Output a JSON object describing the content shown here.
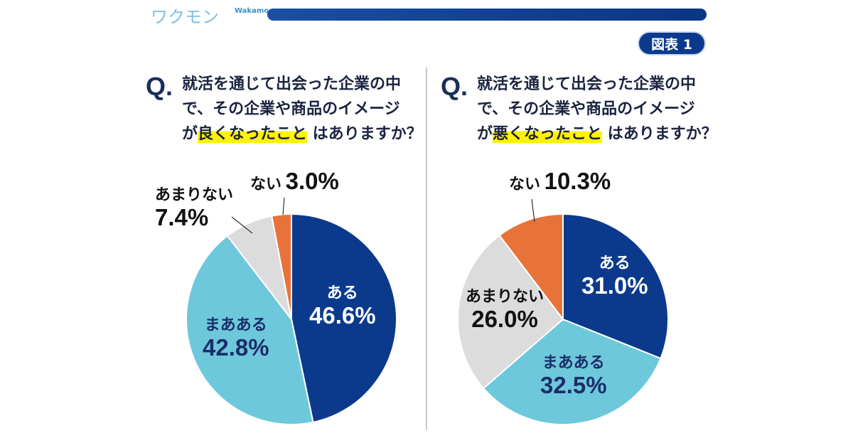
{
  "logo": {
    "text": "ワクモン",
    "en": "Wakamon"
  },
  "badge": "図表 1",
  "colors": {
    "ある": "#0b3a8c",
    "まあある": "#6ec8db",
    "あまりない": "#dcdcdc",
    "ない": "#e8733a"
  },
  "chart_data": [
    {
      "type": "pie",
      "q": "Q.",
      "title_lines": [
        "就活を通じて出会った企業の中",
        "で、その企業や商品のイメージ"
      ],
      "title_pre": "が",
      "title_highlight": "良くなったこと",
      "title_post": " はありますか？",
      "slices": [
        {
          "label": "ある",
          "value": 46.6,
          "text": "46.6%"
        },
        {
          "label": "まあある",
          "value": 42.8,
          "text": "42.8%"
        },
        {
          "label": "あまりない",
          "value": 7.4,
          "text": "7.4%"
        },
        {
          "label": "ない",
          "value": 3.0,
          "text": "3.0%"
        }
      ]
    },
    {
      "type": "pie",
      "q": "Q.",
      "title_lines": [
        "就活を通じて出会った企業の中",
        "で、その企業や商品のイメージ"
      ],
      "title_pre": "が",
      "title_highlight": "悪くなったこと",
      "title_post": " はありますか？",
      "slices": [
        {
          "label": "ある",
          "value": 31.0,
          "text": "31.0%"
        },
        {
          "label": "まあある",
          "value": 32.5,
          "text": "32.5%"
        },
        {
          "label": "あまりない",
          "value": 26.0,
          "text": "26.0%"
        },
        {
          "label": "ない",
          "value": 10.3,
          "text": "10.3%"
        }
      ]
    }
  ]
}
